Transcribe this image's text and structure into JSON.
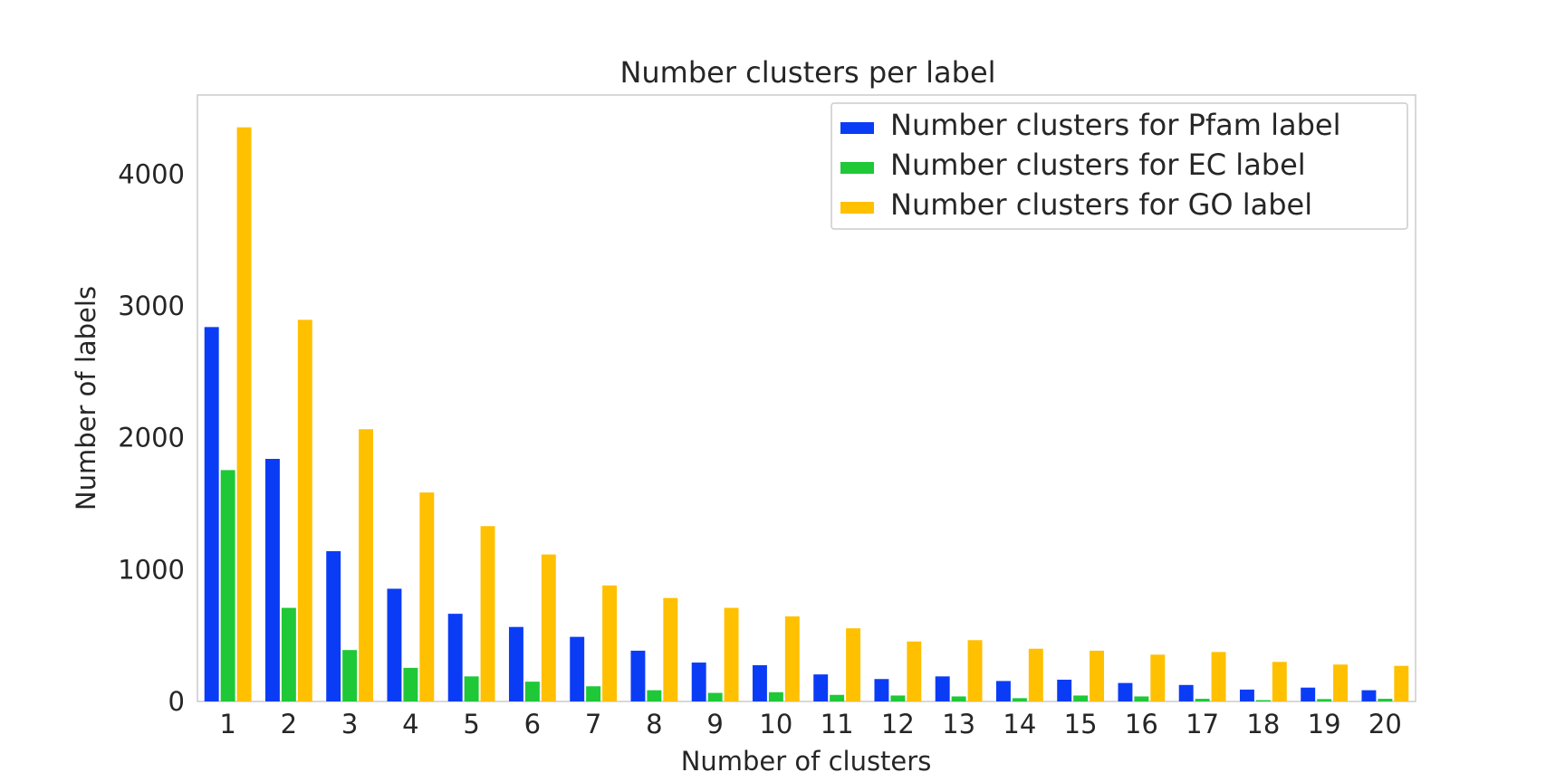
{
  "chart_data": {
    "type": "bar",
    "title": "Number clusters per label",
    "xlabel": "Number of clusters",
    "ylabel": "Number of labels",
    "categories": [
      "1",
      "2",
      "3",
      "4",
      "5",
      "6",
      "7",
      "8",
      "9",
      "10",
      "11",
      "12",
      "13",
      "14",
      "15",
      "16",
      "17",
      "18",
      "19",
      "20"
    ],
    "ylim": [
      0,
      4600
    ],
    "yticks": [
      0,
      1000,
      2000,
      3000,
      4000
    ],
    "grid": false,
    "legend_position": "top-right",
    "series": [
      {
        "name": "Number clusters for Pfam label",
        "color": "#0b3cf5",
        "values": [
          2840,
          1840,
          1140,
          855,
          665,
          565,
          490,
          385,
          295,
          275,
          205,
          170,
          190,
          155,
          165,
          140,
          125,
          90,
          105,
          85
        ]
      },
      {
        "name": "Number clusters for EC label",
        "color": "#1ec837",
        "values": [
          1755,
          710,
          390,
          255,
          190,
          150,
          115,
          85,
          65,
          70,
          50,
          45,
          38,
          25,
          45,
          38,
          20,
          10,
          18,
          20
        ]
      },
      {
        "name": "Number clusters for GO label",
        "color": "#ffc000",
        "values": [
          4355,
          2895,
          2065,
          1585,
          1330,
          1115,
          880,
          785,
          710,
          645,
          555,
          455,
          465,
          400,
          385,
          355,
          375,
          300,
          280,
          270
        ]
      }
    ]
  }
}
